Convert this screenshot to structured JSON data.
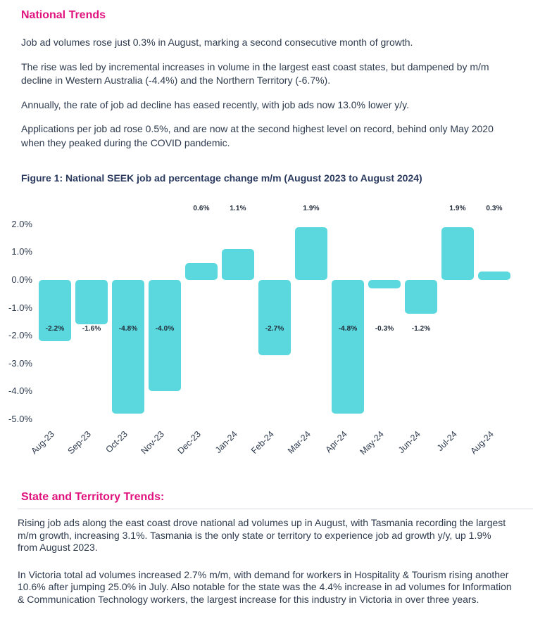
{
  "colors": {
    "heading_pink": "#e0137e",
    "body_text": "#2e3b4e",
    "caption_navy": "#2a3a5e",
    "bar_teal": "#5bd8dd",
    "data_label": "#1f2a38",
    "divider": "#d9dbe0"
  },
  "national": {
    "heading": "National Trends",
    "paragraphs": [
      "Job ad volumes rose just 0.3% in August, marking a second consecutive month of growth.",
      "The rise was led by incremental increases in volume in the largest east coast states, but dampened by m/m decline in Western Australia (-4.4%) and the Northern Territory (-6.7%).",
      "Annually, the rate of job ad decline has eased recently, with job ads now 13.0% lower y/y.",
      "Applications per job ad rose 0.5%, and are now at the second highest level on record, behind only May 2020 when they peaked during the COVID pandemic."
    ]
  },
  "figure": {
    "caption": "Figure 1: National SEEK job ad percentage change m/m (August 2023 to August 2024)"
  },
  "state": {
    "heading": "State and Territory Trends:",
    "paragraphs": [
      "Rising job ads along the east coast drove national ad volumes up in August, with Tasmania recording the largest m/m growth, increasing 3.1%. Tasmania is the only state or territory to experience job ad growth y/y, up 1.9% from August 2023.",
      "In Victoria total ad volumes increased 2.7% m/m, with demand for workers in Hospitality & Tourism rising another 10.6% after jumping 25.0% in July. Also notable for the state was the 4.4% increase in ad volumes for Information & Communication Technology workers, the largest increase for this industry in Victoria in over three years."
    ]
  },
  "chart_data": {
    "type": "bar",
    "title": "Figure 1: National SEEK job ad percentage change m/m (August 2023 to August 2024)",
    "categories": [
      "Aug-23",
      "Sep-23",
      "Oct-23",
      "Nov-23",
      "Dec-23",
      "Jan-24",
      "Feb-24",
      "Mar-24",
      "Apr-24",
      "May-24",
      "Jun-24",
      "Jul-24",
      "Aug-24"
    ],
    "values": [
      -2.2,
      -1.6,
      -4.8,
      -4.0,
      0.6,
      1.1,
      -2.7,
      1.9,
      -4.8,
      -0.3,
      -1.2,
      1.9,
      0.3
    ],
    "data_labels": [
      "-2.2%",
      "-1.6%",
      "-4.8%",
      "-4.0%",
      "0.6%",
      "1.1%",
      "-2.7%",
      "1.9%",
      "-4.8%",
      "-0.3%",
      "-1.2%",
      "1.9%",
      "0.3%"
    ],
    "xlabel": "",
    "ylabel": "",
    "ylim": [
      -5.0,
      2.0
    ],
    "ytick_labels": [
      "2.0%",
      "1.0%",
      "0.0%",
      "-1.0%",
      "-2.0%",
      "-3.0%",
      "-4.0%",
      "-5.0%"
    ],
    "grid": false,
    "legend": "none",
    "bar_color": "#5bd8dd"
  }
}
